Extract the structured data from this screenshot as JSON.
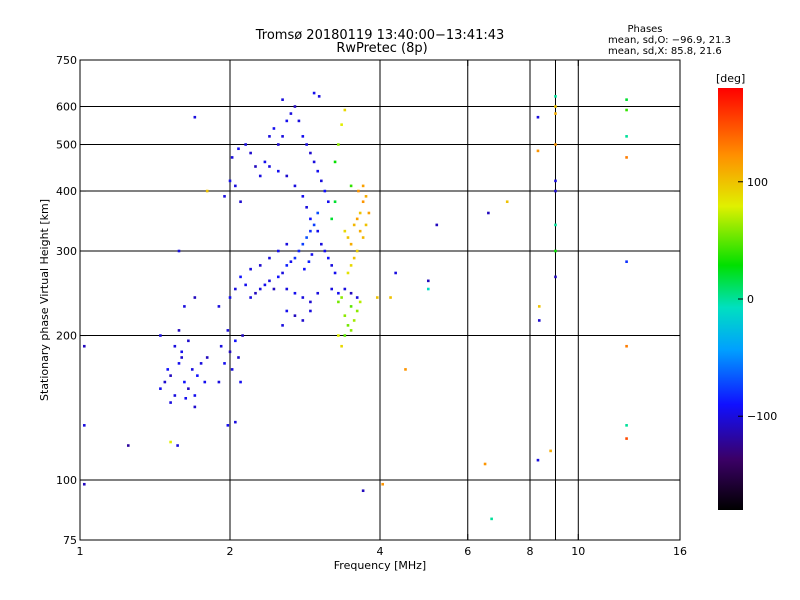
{
  "chart_data": {
    "type": "scatter",
    "title": "Tromsø 20180119 13:40:00−13:41:43",
    "subtitle": "RwPretec (8p)",
    "xlabel": "Frequency [MHz]",
    "ylabel": "Stationary phase Virtual Height [km]",
    "x_scale": "log",
    "y_scale": "log",
    "xlim": [
      1,
      16
    ],
    "ylim": [
      75,
      750
    ],
    "x_ticks": [
      1,
      2,
      4,
      6,
      8,
      10,
      16
    ],
    "x_tick_labels": [
      "1",
      "2",
      "4",
      "6",
      "8",
      "10",
      "16"
    ],
    "y_ticks": [
      75,
      100,
      200,
      300,
      400,
      500,
      600,
      750
    ],
    "y_tick_labels": [
      "75",
      "100",
      "200",
      "300",
      "400",
      "500",
      "600",
      "750"
    ],
    "x_gridlines": [
      2,
      4,
      6,
      8,
      10
    ],
    "x_minor_gridlines": [
      9
    ],
    "y_gridlines": [
      100,
      200,
      300,
      400,
      500,
      600
    ],
    "grid": true,
    "stats_title": "Phases",
    "stats_lines": [
      "mean, sd,O: −96.9, 21.3",
      "mean, sd,X: 85.8, 21.6"
    ],
    "colorbar": {
      "label": "[deg]",
      "range": [
        -180,
        180
      ],
      "ticks": [
        100,
        0,
        -100
      ],
      "tick_labels": [
        "100",
        "0",
        "−100"
      ]
    },
    "points": [
      [
        1.02,
        190,
        -110
      ],
      [
        1.02,
        130,
        -100
      ],
      [
        1.02,
        98,
        -110
      ],
      [
        1.25,
        118,
        -120
      ],
      [
        1.45,
        155,
        -95
      ],
      [
        1.48,
        160,
        -105
      ],
      [
        1.5,
        170,
        -90
      ],
      [
        1.52,
        165,
        -110
      ],
      [
        1.55,
        150,
        -100
      ],
      [
        1.58,
        175,
        -95
      ],
      [
        1.6,
        180,
        -105
      ],
      [
        1.62,
        160,
        -90
      ],
      [
        1.65,
        155,
        -110
      ],
      [
        1.68,
        170,
        -100
      ],
      [
        1.7,
        150,
        -95
      ],
      [
        1.55,
        190,
        -100
      ],
      [
        1.6,
        185,
        -95
      ],
      [
        1.65,
        195,
        -105
      ],
      [
        1.58,
        205,
        -110
      ],
      [
        1.45,
        200,
        -100
      ],
      [
        1.72,
        165,
        -90
      ],
      [
        1.75,
        175,
        -100
      ],
      [
        1.78,
        160,
        -95
      ],
      [
        1.8,
        180,
        -110
      ],
      [
        1.52,
        145,
        -100
      ],
      [
        1.63,
        148,
        -95
      ],
      [
        1.7,
        142,
        -105
      ],
      [
        1.62,
        230,
        -100
      ],
      [
        1.7,
        240,
        -110
      ],
      [
        1.58,
        300,
        -100
      ],
      [
        1.52,
        120,
        80
      ],
      [
        1.57,
        118,
        -100
      ],
      [
        1.9,
        160,
        -100
      ],
      [
        1.95,
        175,
        -95
      ],
      [
        2.0,
        185,
        -110
      ],
      [
        2.02,
        170,
        -100
      ],
      [
        2.05,
        195,
        -90
      ],
      [
        1.98,
        205,
        -100
      ],
      [
        2.08,
        180,
        -105
      ],
      [
        2.1,
        160,
        -95
      ],
      [
        1.92,
        190,
        -100
      ],
      [
        2.12,
        200,
        -110
      ],
      [
        1.98,
        130,
        -95
      ],
      [
        2.05,
        132,
        -100
      ],
      [
        1.9,
        230,
        -100
      ],
      [
        2.0,
        240,
        -95
      ],
      [
        2.05,
        250,
        -100
      ],
      [
        2.1,
        265,
        -90
      ],
      [
        2.2,
        240,
        -100
      ],
      [
        2.15,
        255,
        -95
      ],
      [
        2.25,
        245,
        -110
      ],
      [
        2.3,
        250,
        -100
      ],
      [
        2.35,
        255,
        -95
      ],
      [
        2.4,
        260,
        -100
      ],
      [
        2.45,
        250,
        -110
      ],
      [
        2.5,
        265,
        -90
      ],
      [
        2.55,
        270,
        -100
      ],
      [
        2.6,
        280,
        -85
      ],
      [
        2.65,
        285,
        -95
      ],
      [
        2.7,
        290,
        -80
      ],
      [
        2.75,
        300,
        -85
      ],
      [
        2.8,
        310,
        -75
      ],
      [
        2.85,
        320,
        -70
      ],
      [
        2.9,
        330,
        -80
      ],
      [
        2.95,
        340,
        -75
      ],
      [
        3.0,
        360,
        -70
      ],
      [
        2.82,
        275,
        -90
      ],
      [
        2.88,
        285,
        -85
      ],
      [
        2.92,
        295,
        -95
      ],
      [
        2.6,
        310,
        -100
      ],
      [
        2.5,
        300,
        -95
      ],
      [
        2.4,
        290,
        -100
      ],
      [
        2.3,
        280,
        -105
      ],
      [
        2.2,
        275,
        -100
      ],
      [
        1.95,
        390,
        -100
      ],
      [
        2.0,
        420,
        -95
      ],
      [
        2.05,
        410,
        -100
      ],
      [
        2.1,
        380,
        -105
      ],
      [
        2.02,
        470,
        -100
      ],
      [
        2.08,
        490,
        -95
      ],
      [
        2.15,
        500,
        -100
      ],
      [
        2.2,
        480,
        -105
      ],
      [
        2.25,
        450,
        -110
      ],
      [
        2.3,
        430,
        -100
      ],
      [
        2.35,
        460,
        -95
      ],
      [
        2.4,
        520,
        -100
      ],
      [
        2.45,
        540,
        -95
      ],
      [
        2.5,
        500,
        -105
      ],
      [
        2.55,
        520,
        -100
      ],
      [
        2.6,
        560,
        -95
      ],
      [
        2.65,
        580,
        -100
      ],
      [
        2.7,
        600,
        -110
      ],
      [
        2.75,
        560,
        -100
      ],
      [
        2.8,
        520,
        -95
      ],
      [
        2.85,
        500,
        -100
      ],
      [
        2.9,
        480,
        -105
      ],
      [
        2.95,
        460,
        -100
      ],
      [
        3.0,
        440,
        -95
      ],
      [
        3.05,
        420,
        -100
      ],
      [
        3.1,
        400,
        -90
      ],
      [
        3.15,
        380,
        -95
      ],
      [
        2.55,
        620,
        -100
      ],
      [
        2.95,
        640,
        -95
      ],
      [
        3.02,
        630,
        -100
      ],
      [
        2.4,
        450,
        -100
      ],
      [
        2.5,
        440,
        -95
      ],
      [
        2.6,
        430,
        -105
      ],
      [
        2.7,
        410,
        -100
      ],
      [
        2.8,
        390,
        -95
      ],
      [
        2.85,
        370,
        -100
      ],
      [
        2.9,
        350,
        -90
      ],
      [
        3.0,
        330,
        -95
      ],
      [
        3.05,
        310,
        -100
      ],
      [
        3.1,
        300,
        -95
      ],
      [
        3.15,
        290,
        -90
      ],
      [
        3.2,
        280,
        -100
      ],
      [
        3.25,
        270,
        -95
      ],
      [
        2.6,
        250,
        -100
      ],
      [
        2.7,
        245,
        -95
      ],
      [
        2.8,
        240,
        -100
      ],
      [
        2.9,
        235,
        -105
      ],
      [
        3.0,
        245,
        -100
      ],
      [
        2.7,
        220,
        -110
      ],
      [
        2.8,
        215,
        -105
      ],
      [
        2.9,
        225,
        -100
      ],
      [
        2.6,
        225,
        -95
      ],
      [
        2.55,
        210,
        -100
      ],
      [
        3.2,
        250,
        -100
      ],
      [
        3.3,
        245,
        -95
      ],
      [
        3.4,
        250,
        -100
      ],
      [
        3.5,
        245,
        -110
      ],
      [
        3.6,
        240,
        -100
      ],
      [
        3.25,
        460,
        30
      ],
      [
        3.3,
        500,
        60
      ],
      [
        3.35,
        550,
        80
      ],
      [
        3.4,
        590,
        90
      ],
      [
        3.5,
        410,
        40
      ],
      [
        3.4,
        330,
        90
      ],
      [
        3.45,
        320,
        100
      ],
      [
        3.5,
        310,
        110
      ],
      [
        3.55,
        340,
        105
      ],
      [
        3.6,
        350,
        115
      ],
      [
        3.65,
        360,
        100
      ],
      [
        3.7,
        380,
        120
      ],
      [
        3.75,
        390,
        110
      ],
      [
        3.6,
        300,
        95
      ],
      [
        3.55,
        290,
        100
      ],
      [
        3.5,
        280,
        90
      ],
      [
        3.45,
        270,
        85
      ],
      [
        3.65,
        330,
        110
      ],
      [
        3.7,
        320,
        105
      ],
      [
        3.75,
        340,
        100
      ],
      [
        3.8,
        360,
        115
      ],
      [
        3.62,
        400,
        120
      ],
      [
        3.7,
        410,
        115
      ],
      [
        3.4,
        220,
        60
      ],
      [
        3.45,
        210,
        55
      ],
      [
        3.5,
        205,
        60
      ],
      [
        3.55,
        215,
        65
      ],
      [
        3.6,
        225,
        60
      ],
      [
        3.65,
        235,
        70
      ],
      [
        3.5,
        230,
        50
      ],
      [
        3.35,
        240,
        60
      ],
      [
        3.3,
        235,
        55
      ],
      [
        3.4,
        200,
        50
      ],
      [
        3.2,
        350,
        20
      ],
      [
        3.25,
        380,
        20
      ],
      [
        3.3,
        200,
        80
      ],
      [
        3.35,
        190,
        90
      ],
      [
        3.95,
        240,
        100
      ],
      [
        4.2,
        240,
        100
      ],
      [
        4.3,
        270,
        -100
      ],
      [
        4.5,
        170,
        120
      ],
      [
        5.0,
        260,
        -110
      ],
      [
        5.0,
        250,
        -10
      ],
      [
        5.2,
        340,
        -110
      ],
      [
        4.05,
        98,
        120
      ],
      [
        3.7,
        95,
        -110
      ],
      [
        6.5,
        108,
        120
      ],
      [
        6.6,
        360,
        -110
      ],
      [
        6.7,
        83,
        0
      ],
      [
        7.2,
        380,
        100
      ],
      [
        8.3,
        570,
        -100
      ],
      [
        8.3,
        485,
        120
      ],
      [
        8.35,
        230,
        100
      ],
      [
        8.35,
        215,
        -105
      ],
      [
        8.3,
        110,
        -100
      ],
      [
        8.8,
        115,
        110
      ],
      [
        9.0,
        630,
        0
      ],
      [
        9.0,
        600,
        100
      ],
      [
        9.0,
        580,
        110
      ],
      [
        9.0,
        500,
        120
      ],
      [
        9.0,
        420,
        -100
      ],
      [
        9.0,
        400,
        -105
      ],
      [
        9.0,
        340,
        0
      ],
      [
        9.0,
        265,
        -110
      ],
      [
        9.0,
        300,
        30
      ],
      [
        12.5,
        620,
        20
      ],
      [
        12.5,
        590,
        40
      ],
      [
        12.5,
        520,
        0
      ],
      [
        12.5,
        470,
        130
      ],
      [
        12.5,
        285,
        -80
      ],
      [
        12.5,
        190,
        130
      ],
      [
        12.5,
        130,
        0
      ],
      [
        12.5,
        122,
        150
      ],
      [
        1.7,
        570,
        -100
      ],
      [
        1.8,
        400,
        100
      ]
    ]
  }
}
